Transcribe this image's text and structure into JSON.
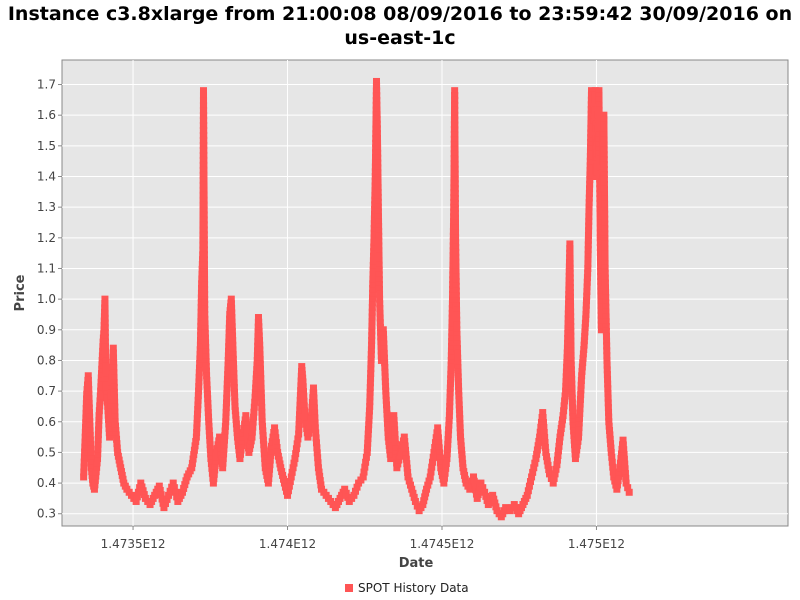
{
  "chart_data": {
    "type": "scatter",
    "title_line1": "Instance c3.8xlarge from 21:00:08 08/09/2016 to 23:59:42 30/09/2016 on",
    "title_line2": "us-east-1c",
    "xlabel": "Date",
    "ylabel": "Price",
    "xlim": [
      1473270000000,
      1475620000000
    ],
    "ylim": [
      0.26,
      1.78
    ],
    "x_ticks": [
      {
        "value": 1473500000000,
        "label": "1.4735E12"
      },
      {
        "value": 1474000000000,
        "label": "1.474E12"
      },
      {
        "value": 1474500000000,
        "label": "1.4745E12"
      },
      {
        "value": 1475000000000,
        "label": "1.475E12"
      }
    ],
    "y_ticks": [
      {
        "value": 0.3,
        "label": "0.3"
      },
      {
        "value": 0.4,
        "label": "0.4"
      },
      {
        "value": 0.5,
        "label": "0.5"
      },
      {
        "value": 0.6,
        "label": "0.6"
      },
      {
        "value": 0.7,
        "label": "0.7"
      },
      {
        "value": 0.8,
        "label": "0.8"
      },
      {
        "value": 0.9,
        "label": "0.9"
      },
      {
        "value": 1.0,
        "label": "1.0"
      },
      {
        "value": 1.1,
        "label": "1.1"
      },
      {
        "value": 1.2,
        "label": "1.2"
      },
      {
        "value": 1.3,
        "label": "1.3"
      },
      {
        "value": 1.4,
        "label": "1.4"
      },
      {
        "value": 1.5,
        "label": "1.5"
      },
      {
        "value": 1.6,
        "label": "1.6"
      },
      {
        "value": 1.7,
        "label": "1.7"
      }
    ],
    "grid": true,
    "legend_position": "bottom-center",
    "colors": {
      "series": "#ff5555",
      "plot_background": "#e6e6e6",
      "grid": "#ffffff"
    },
    "series": [
      {
        "name": "SPOT History Data",
        "points": [
          [
            1473340000000,
            0.42
          ],
          [
            1473345000000,
            0.55
          ],
          [
            1473350000000,
            0.69
          ],
          [
            1473355000000,
            0.75
          ],
          [
            1473360000000,
            0.6
          ],
          [
            1473365000000,
            0.45
          ],
          [
            1473370000000,
            0.4
          ],
          [
            1473375000000,
            0.38
          ],
          [
            1473385000000,
            0.48
          ],
          [
            1473390000000,
            0.62
          ],
          [
            1473395000000,
            0.7
          ],
          [
            1473400000000,
            0.8
          ],
          [
            1473403000000,
            0.86
          ],
          [
            1473406000000,
            0.9
          ],
          [
            1473409000000,
            1.0
          ],
          [
            1473412000000,
            0.72
          ],
          [
            1473418000000,
            0.65
          ],
          [
            1473424000000,
            0.55
          ],
          [
            1473430000000,
            0.7
          ],
          [
            1473436000000,
            0.84
          ],
          [
            1473442000000,
            0.6
          ],
          [
            1473450000000,
            0.5
          ],
          [
            1473460000000,
            0.45
          ],
          [
            1473470000000,
            0.4
          ],
          [
            1473480000000,
            0.38
          ],
          [
            1473495000000,
            0.36
          ],
          [
            1473510000000,
            0.34
          ],
          [
            1473525000000,
            0.4
          ],
          [
            1473540000000,
            0.35
          ],
          [
            1473555000000,
            0.33
          ],
          [
            1473570000000,
            0.36
          ],
          [
            1473585000000,
            0.39
          ],
          [
            1473600000000,
            0.32
          ],
          [
            1473615000000,
            0.36
          ],
          [
            1473630000000,
            0.4
          ],
          [
            1473645000000,
            0.34
          ],
          [
            1473660000000,
            0.37
          ],
          [
            1473675000000,
            0.42
          ],
          [
            1473690000000,
            0.45
          ],
          [
            1473705000000,
            0.55
          ],
          [
            1473712000000,
            0.7
          ],
          [
            1473718000000,
            0.85
          ],
          [
            1473722000000,
            1.05
          ],
          [
            1473726000000,
            1.16
          ],
          [
            1473728000000,
            1.68
          ],
          [
            1473732000000,
            0.95
          ],
          [
            1473738000000,
            0.75
          ],
          [
            1473745000000,
            0.6
          ],
          [
            1473752000000,
            0.48
          ],
          [
            1473760000000,
            0.4
          ],
          [
            1473770000000,
            0.5
          ],
          [
            1473780000000,
            0.55
          ],
          [
            1473790000000,
            0.45
          ],
          [
            1473800000000,
            0.6
          ],
          [
            1473808000000,
            0.8
          ],
          [
            1473813000000,
            0.95
          ],
          [
            1473818000000,
            1.0
          ],
          [
            1473823000000,
            0.85
          ],
          [
            1473830000000,
            0.65
          ],
          [
            1473838000000,
            0.55
          ],
          [
            1473846000000,
            0.48
          ],
          [
            1473855000000,
            0.55
          ],
          [
            1473865000000,
            0.62
          ],
          [
            1473875000000,
            0.5
          ],
          [
            1473885000000,
            0.55
          ],
          [
            1473895000000,
            0.68
          ],
          [
            1473902000000,
            0.8
          ],
          [
            1473906000000,
            0.94
          ],
          [
            1473910000000,
            0.85
          ],
          [
            1473918000000,
            0.6
          ],
          [
            1473928000000,
            0.45
          ],
          [
            1473938000000,
            0.4
          ],
          [
            1473948000000,
            0.52
          ],
          [
            1473958000000,
            0.58
          ],
          [
            1473968000000,
            0.5
          ],
          [
            1473978000000,
            0.45
          ],
          [
            1473990000000,
            0.4
          ],
          [
            1474000000000,
            0.36
          ],
          [
            1474012000000,
            0.42
          ],
          [
            1474024000000,
            0.48
          ],
          [
            1474036000000,
            0.56
          ],
          [
            1474046000000,
            0.78
          ],
          [
            1474050000000,
            0.73
          ],
          [
            1474056000000,
            0.62
          ],
          [
            1474066000000,
            0.55
          ],
          [
            1474076000000,
            0.6
          ],
          [
            1474084000000,
            0.71
          ],
          [
            1474090000000,
            0.58
          ],
          [
            1474100000000,
            0.45
          ],
          [
            1474110000000,
            0.38
          ],
          [
            1474125000000,
            0.36
          ],
          [
            1474140000000,
            0.34
          ],
          [
            1474155000000,
            0.32
          ],
          [
            1474170000000,
            0.35
          ],
          [
            1474185000000,
            0.38
          ],
          [
            1474200000000,
            0.34
          ],
          [
            1474215000000,
            0.36
          ],
          [
            1474230000000,
            0.4
          ],
          [
            1474245000000,
            0.42
          ],
          [
            1474258000000,
            0.5
          ],
          [
            1474266000000,
            0.65
          ],
          [
            1474272000000,
            0.85
          ],
          [
            1474276000000,
            1.05
          ],
          [
            1474280000000,
            1.2
          ],
          [
            1474284000000,
            1.4
          ],
          [
            1474288000000,
            1.71
          ],
          [
            1474291000000,
            1.54
          ],
          [
            1474294000000,
            1.3
          ],
          [
            1474298000000,
            1.0
          ],
          [
            1474304000000,
            0.8
          ],
          [
            1474310000000,
            0.9
          ],
          [
            1474318000000,
            0.7
          ],
          [
            1474326000000,
            0.55
          ],
          [
            1474334000000,
            0.48
          ],
          [
            1474344000000,
            0.62
          ],
          [
            1474354000000,
            0.45
          ],
          [
            1474366000000,
            0.5
          ],
          [
            1474378000000,
            0.55
          ],
          [
            1474390000000,
            0.42
          ],
          [
            1474402000000,
            0.38
          ],
          [
            1474414000000,
            0.34
          ],
          [
            1474426000000,
            0.31
          ],
          [
            1474438000000,
            0.33
          ],
          [
            1474450000000,
            0.38
          ],
          [
            1474462000000,
            0.42
          ],
          [
            1474474000000,
            0.5
          ],
          [
            1474486000000,
            0.58
          ],
          [
            1474496000000,
            0.45
          ],
          [
            1474506000000,
            0.4
          ],
          [
            1474516000000,
            0.48
          ],
          [
            1474524000000,
            0.62
          ],
          [
            1474530000000,
            0.8
          ],
          [
            1474534000000,
            1.0
          ],
          [
            1474538000000,
            1.3
          ],
          [
            1474541000000,
            1.68
          ],
          [
            1474544000000,
            1.2
          ],
          [
            1474548000000,
            0.9
          ],
          [
            1474554000000,
            0.7
          ],
          [
            1474560000000,
            0.55
          ],
          [
            1474568000000,
            0.45
          ],
          [
            1474578000000,
            0.4
          ],
          [
            1474590000000,
            0.38
          ],
          [
            1474602000000,
            0.42
          ],
          [
            1474614000000,
            0.35
          ],
          [
            1474626000000,
            0.4
          ],
          [
            1474638000000,
            0.37
          ],
          [
            1474650000000,
            0.33
          ],
          [
            1474664000000,
            0.36
          ],
          [
            1474678000000,
            0.31
          ],
          [
            1474692000000,
            0.29
          ],
          [
            1474706000000,
            0.32
          ],
          [
            1474720000000,
            0.31
          ],
          [
            1474734000000,
            0.33
          ],
          [
            1474748000000,
            0.3
          ],
          [
            1474762000000,
            0.33
          ],
          [
            1474776000000,
            0.36
          ],
          [
            1474790000000,
            0.42
          ],
          [
            1474804000000,
            0.48
          ],
          [
            1474816000000,
            0.55
          ],
          [
            1474826000000,
            0.63
          ],
          [
            1474836000000,
            0.5
          ],
          [
            1474848000000,
            0.43
          ],
          [
            1474860000000,
            0.4
          ],
          [
            1474872000000,
            0.46
          ],
          [
            1474882000000,
            0.55
          ],
          [
            1474892000000,
            0.62
          ],
          [
            1474900000000,
            0.7
          ],
          [
            1474906000000,
            0.84
          ],
          [
            1474910000000,
            1.0
          ],
          [
            1474914000000,
            1.18
          ],
          [
            1474918000000,
            0.8
          ],
          [
            1474924000000,
            0.6
          ],
          [
            1474932000000,
            0.48
          ],
          [
            1474942000000,
            0.55
          ],
          [
            1474952000000,
            0.75
          ],
          [
            1474960000000,
            0.85
          ],
          [
            1474966000000,
            0.95
          ],
          [
            1474972000000,
            1.1
          ],
          [
            1474976000000,
            1.3
          ],
          [
            1474980000000,
            1.45
          ],
          [
            1474984000000,
            1.68
          ],
          [
            1474988000000,
            1.54
          ],
          [
            1474992000000,
            1.6
          ],
          [
            1474996000000,
            1.68
          ],
          [
            1475000000000,
            1.4
          ],
          [
            1475004000000,
            1.54
          ],
          [
            1475008000000,
            1.68
          ],
          [
            1475012000000,
            1.2
          ],
          [
            1475016000000,
            0.9
          ],
          [
            1475020000000,
            1.45
          ],
          [
            1475024000000,
            1.6
          ],
          [
            1475028000000,
            1.1
          ],
          [
            1475034000000,
            0.8
          ],
          [
            1475040000000,
            0.6
          ],
          [
            1475048000000,
            0.5
          ],
          [
            1475056000000,
            0.42
          ],
          [
            1475066000000,
            0.38
          ],
          [
            1475076000000,
            0.45
          ],
          [
            1475086000000,
            0.54
          ],
          [
            1475096000000,
            0.4
          ],
          [
            1475106000000,
            0.37
          ]
        ]
      }
    ]
  }
}
